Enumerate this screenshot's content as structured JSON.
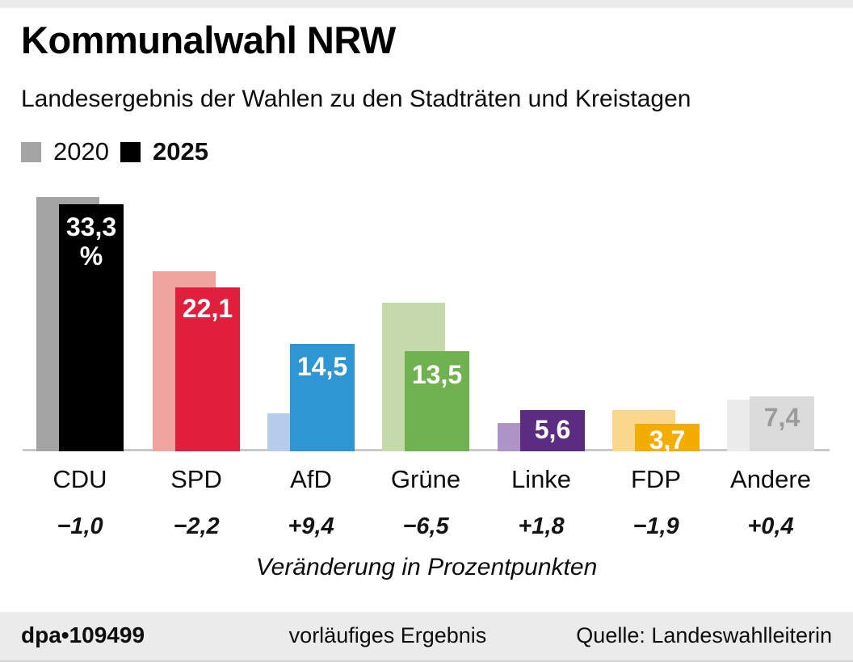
{
  "header": {
    "title": "Kommunalwahl NRW",
    "subtitle": "Landesergebnis der Wahlen zu den Stadträten und Kreistagen"
  },
  "legend": [
    {
      "label": "2020",
      "color": "#a4a4a4"
    },
    {
      "label": "2025",
      "color": "#000000"
    }
  ],
  "chart_data": {
    "type": "bar",
    "title": "Kommunalwahl NRW",
    "subtitle": "Landesergebnis der Wahlen zu den Stadträten und Kreistagen",
    "unit": "%",
    "ylim": [
      0,
      35
    ],
    "grid": false,
    "legend_position": "top-left",
    "categories": [
      "CDU",
      "SPD",
      "AfD",
      "Grüne",
      "Linke",
      "FDP",
      "Andere"
    ],
    "series": [
      {
        "name": "2020",
        "values": [
          34.3,
          24.3,
          5.1,
          20.0,
          3.8,
          5.6,
          7.0
        ]
      },
      {
        "name": "2025",
        "values": [
          33.3,
          22.1,
          14.5,
          13.5,
          5.6,
          3.7,
          7.4
        ]
      }
    ],
    "footnote": "Veränderung in Prozentpunkten",
    "parties": [
      {
        "party": "CDU",
        "value_2020": 34.3,
        "value_2025": 33.3,
        "value_label": "33,3\n%",
        "change_label": "−1,0",
        "color_2020": "#a4a4a4",
        "color_2025": "#000000",
        "value_label_color": "#ffffff"
      },
      {
        "party": "SPD",
        "value_2020": 24.3,
        "value_2025": 22.1,
        "value_label": "22,1",
        "change_label": "−2,2",
        "color_2020": "#efa49f",
        "color_2025": "#e01f3c",
        "value_label_color": "#ffffff"
      },
      {
        "party": "AfD",
        "value_2020": 5.1,
        "value_2025": 14.5,
        "value_label": "14,5",
        "change_label": "+9,4",
        "color_2020": "#b5cdea",
        "color_2025": "#2e97d3",
        "value_label_color": "#ffffff"
      },
      {
        "party": "Grüne",
        "value_2020": 20.0,
        "value_2025": 13.5,
        "value_label": "13,5",
        "change_label": "−6,5",
        "color_2020": "#c6d9ab",
        "color_2025": "#70b150",
        "value_label_color": "#ffffff"
      },
      {
        "party": "Linke",
        "value_2020": 3.8,
        "value_2025": 5.6,
        "value_label": "5,6",
        "change_label": "+1,8",
        "color_2020": "#ae94c6",
        "color_2025": "#5c2c80",
        "value_label_color": "#ffffff"
      },
      {
        "party": "FDP",
        "value_2020": 5.6,
        "value_2025": 3.7,
        "value_label": "3,7",
        "change_label": "−1,9",
        "color_2020": "#fbd78e",
        "color_2025": "#f3ad00",
        "value_label_color": "#ffffff"
      },
      {
        "party": "Andere",
        "value_2020": 7.0,
        "value_2025": 7.4,
        "value_label": "7,4",
        "change_label": "+0,4",
        "color_2020": "#ececec",
        "color_2025": "#dbdbdb",
        "value_label_color": "#9b9b9b"
      }
    ]
  },
  "footer": {
    "credit": "dpa•109499",
    "status": "vorläufiges Ergebnis",
    "source": "Quelle: Landeswahlleiterin"
  }
}
